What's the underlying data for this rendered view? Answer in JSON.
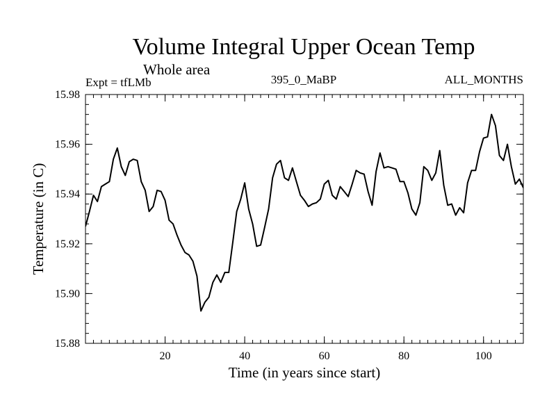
{
  "chart_data": {
    "type": "line",
    "title": "Volume Integral Upper Ocean Temp",
    "subtitle": "Whole area",
    "annotations": {
      "expt": "Expt = tfLMb",
      "run": "395_0_MaBP",
      "months": "ALL_MONTHS"
    },
    "xlabel": "Time (in years since start)",
    "ylabel": "Temperature (in C)",
    "xlim": [
      0,
      110
    ],
    "ylim": [
      15.88,
      15.98
    ],
    "x_ticks": [
      20,
      40,
      60,
      80,
      100
    ],
    "x_tick_labels": [
      "20",
      "40",
      "60",
      "80",
      "100"
    ],
    "y_ticks": [
      15.88,
      15.9,
      15.92,
      15.94,
      15.96,
      15.98
    ],
    "y_tick_labels": [
      "15.88",
      "15.90",
      "15.92",
      "15.94",
      "15.96",
      "15.98"
    ],
    "x_minor_step": 2,
    "y_minor_step": 0.004,
    "grid": false,
    "series": [
      {
        "name": "Temperature",
        "x": [
          0,
          1,
          2,
          3,
          4,
          5,
          6,
          7,
          8,
          9,
          10,
          11,
          12,
          13,
          14,
          15,
          16,
          17,
          18,
          19,
          20,
          21,
          22,
          23,
          24,
          25,
          26,
          27,
          28,
          29,
          30,
          31,
          32,
          33,
          34,
          35,
          36,
          37,
          38,
          39,
          40,
          41,
          42,
          43,
          44,
          45,
          46,
          47,
          48,
          49,
          50,
          51,
          52,
          53,
          54,
          55,
          56,
          57,
          58,
          59,
          60,
          61,
          62,
          63,
          64,
          65,
          66,
          67,
          68,
          69,
          70,
          71,
          72,
          73,
          74,
          75,
          76,
          77,
          78,
          79,
          80,
          81,
          82,
          83,
          84,
          85,
          86,
          87,
          88,
          89,
          90,
          91,
          92,
          93,
          94,
          95,
          96,
          97,
          98,
          99,
          100,
          101,
          102,
          103,
          104,
          105,
          106,
          107,
          108,
          109,
          110
        ],
        "values": [
          15.927,
          15.933,
          15.9395,
          15.937,
          15.943,
          15.944,
          15.945,
          15.954,
          15.9585,
          15.951,
          15.9475,
          15.953,
          15.954,
          15.9535,
          15.945,
          15.9415,
          15.933,
          15.935,
          15.9415,
          15.941,
          15.9375,
          15.9295,
          15.928,
          15.9235,
          15.9195,
          15.9165,
          15.9155,
          15.913,
          15.907,
          15.893,
          15.8965,
          15.8985,
          15.9045,
          15.9075,
          15.9045,
          15.9085,
          15.9085,
          15.9205,
          15.933,
          15.938,
          15.9445,
          15.934,
          15.928,
          15.919,
          15.9195,
          15.9265,
          15.934,
          15.9465,
          15.952,
          15.9535,
          15.9465,
          15.9455,
          15.9505,
          15.945,
          15.9395,
          15.9375,
          15.935,
          15.936,
          15.9365,
          15.938,
          15.944,
          15.9455,
          15.9395,
          15.938,
          15.943,
          15.941,
          15.939,
          15.944,
          15.9495,
          15.9485,
          15.948,
          15.941,
          15.9355,
          15.949,
          15.9565,
          15.9505,
          15.951,
          15.9505,
          15.95,
          15.945,
          15.945,
          15.9405,
          15.934,
          15.9315,
          15.9365,
          15.951,
          15.9495,
          15.9455,
          15.9485,
          15.9575,
          15.9435,
          15.9355,
          15.936,
          15.9315,
          15.9345,
          15.9325,
          15.9445,
          15.9495,
          15.9495,
          15.957,
          15.9625,
          15.963,
          15.972,
          15.9675,
          15.9555,
          15.9535,
          15.96,
          15.951,
          15.944,
          15.946,
          15.9425
        ]
      }
    ]
  }
}
